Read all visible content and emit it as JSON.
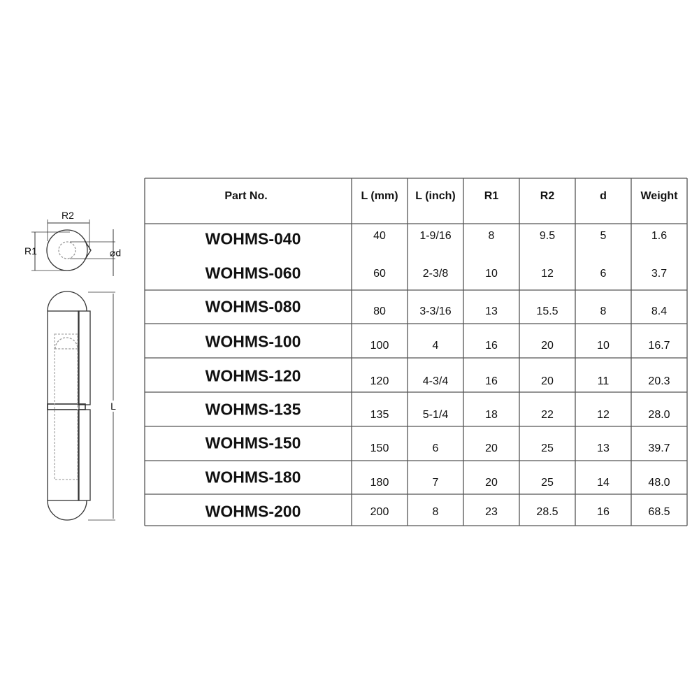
{
  "drawing": {
    "labels": {
      "r2": "R2",
      "r1": "R1",
      "d": "d",
      "l": "L"
    }
  },
  "table": {
    "headers": [
      "Part No.",
      "L (mm)",
      "L (inch)",
      "R1",
      "R2",
      "d",
      "Weight"
    ],
    "rows": [
      {
        "part": "WOHMS-040",
        "values": [
          "40",
          "1-9/16",
          "8",
          "9.5",
          "5",
          "1.6"
        ]
      },
      {
        "part": "WOHMS-060",
        "values": [
          "60",
          "2-3/8",
          "10",
          "12",
          "6",
          "3.7"
        ]
      },
      {
        "part": "WOHMS-080",
        "values": [
          "80",
          "3-3/16",
          "13",
          "15.5",
          "8",
          "8.4"
        ]
      },
      {
        "part": "WOHMS-100",
        "values": [
          "100",
          "4",
          "16",
          "20",
          "10",
          "16.7"
        ]
      },
      {
        "part": "WOHMS-120",
        "values": [
          "120",
          "4-3/4",
          "16",
          "20",
          "11",
          "20.3"
        ]
      },
      {
        "part": "WOHMS-135",
        "values": [
          "135",
          "5-1/4",
          "18",
          "22",
          "12",
          "28.0"
        ]
      },
      {
        "part": "WOHMS-150",
        "values": [
          "150",
          "6",
          "20",
          "25",
          "13",
          "39.7"
        ]
      },
      {
        "part": "WOHMS-180",
        "values": [
          "180",
          "7",
          "20",
          "25",
          "14",
          "48.0"
        ]
      },
      {
        "part": "WOHMS-200",
        "values": [
          "200",
          "8",
          "23",
          "28.5",
          "16",
          "68.5"
        ]
      }
    ]
  }
}
